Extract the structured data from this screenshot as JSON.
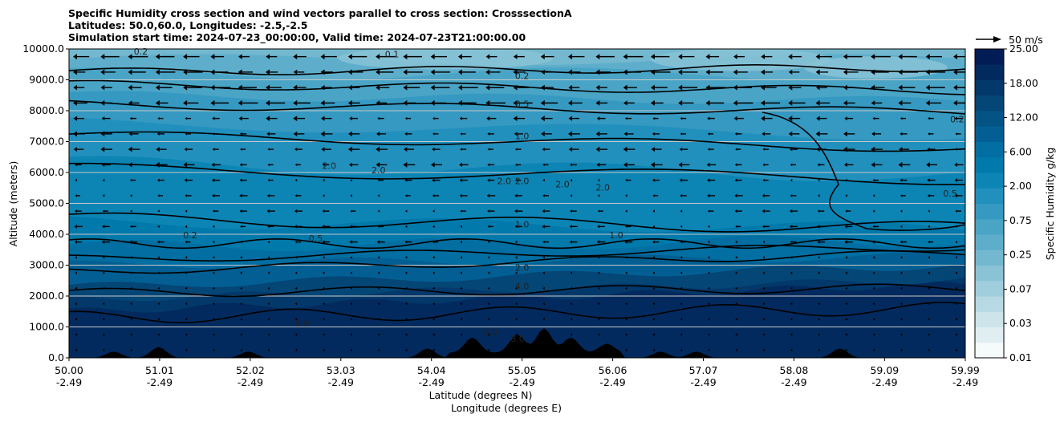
{
  "chart_data": {
    "type": "contour",
    "title_lines": [
      "Specific Humidity cross section and wind vectors parallel to cross section: CrosssectionA",
      "Latitudes: 50.0,60.0, Longitudes: -2.5,-2.5",
      "Simulation start time: 2024-07-23_00:00:00, Valid time: 2024-07-23T21:00:00.00"
    ],
    "ylabel": "Altitude (meters)",
    "xlabel_lines": [
      "Latitude (degrees N)",
      "Longitude (degrees E)"
    ],
    "ylim": [
      0,
      10000
    ],
    "xlim": [
      50.0,
      59.99
    ],
    "y_ticks": [
      "0.0",
      "1000.0",
      "2000.0",
      "3000.0",
      "4000.0",
      "5000.0",
      "6000.0",
      "7000.0",
      "8000.0",
      "9000.0",
      "10000.0"
    ],
    "x_ticks": [
      {
        "lat": "50.00",
        "lon": "-2.49"
      },
      {
        "lat": "51.01",
        "lon": "-2.49"
      },
      {
        "lat": "52.02",
        "lon": "-2.49"
      },
      {
        "lat": "53.03",
        "lon": "-2.49"
      },
      {
        "lat": "54.04",
        "lon": "-2.49"
      },
      {
        "lat": "55.05",
        "lon": "-2.49"
      },
      {
        "lat": "56.06",
        "lon": "-2.49"
      },
      {
        "lat": "57.07",
        "lon": "-2.49"
      },
      {
        "lat": "58.08",
        "lon": "-2.49"
      },
      {
        "lat": "59.09",
        "lon": "-2.49"
      },
      {
        "lat": "59.99",
        "lon": "-2.49"
      }
    ],
    "grid": "horizontal",
    "colorbar": {
      "label": "Specific Humidity g/kg",
      "tick_labels": [
        "0.01",
        "0.03",
        "0.07",
        "0.25",
        "0.75",
        "2.00",
        "6.00",
        "12.00",
        "18.00",
        "25.00"
      ],
      "colors": [
        "#f5fafb",
        "#e0eef2",
        "#cce4ea",
        "#b6d9e3",
        "#a0cedc",
        "#8ac3d6",
        "#73b8cf",
        "#5eaecb",
        "#49a4c6",
        "#3599c1",
        "#2190bd",
        "#0c85b5",
        "#0179ab",
        "#026ea1",
        "#035f93",
        "#045385",
        "#044676",
        "#03386a",
        "#022a5e",
        "#021c55"
      ]
    },
    "quiver_key": {
      "label": "50 m/s",
      "value": 50
    },
    "contour_labels": [
      {
        "text": "0.2",
        "lat": 55.05,
        "alt": 9100
      },
      {
        "text": "0.5",
        "lat": 55.05,
        "alt": 8200
      },
      {
        "text": "1.0",
        "lat": 55.05,
        "alt": 7150
      },
      {
        "text": "2.0",
        "lat": 53.45,
        "alt": 6050
      },
      {
        "text": "2.0",
        "lat": 52.9,
        "alt": 6200
      },
      {
        "text": "2.0",
        "lat": 54.85,
        "alt": 5700
      },
      {
        "text": "2.0",
        "lat": 55.05,
        "alt": 5700
      },
      {
        "text": "2.0",
        "lat": 55.5,
        "alt": 5600
      },
      {
        "text": "2.0",
        "lat": 55.95,
        "alt": 5500
      },
      {
        "text": "1.0",
        "lat": 55.05,
        "alt": 4300
      },
      {
        "text": "2.0",
        "lat": 55.05,
        "alt": 2900
      },
      {
        "text": "4.0",
        "lat": 55.05,
        "alt": 2300
      },
      {
        "text": "8.0",
        "lat": 52.6,
        "alt": 1100
      },
      {
        "text": "8.0",
        "lat": 54.7,
        "alt": 800
      },
      {
        "text": "8.0",
        "lat": 55.0,
        "alt": 600
      },
      {
        "text": "0.1",
        "lat": 53.6,
        "alt": 9800
      },
      {
        "text": "0.2",
        "lat": 50.8,
        "alt": 9900
      },
      {
        "text": "0.5",
        "lat": 52.75,
        "alt": 3850
      },
      {
        "text": "0.2",
        "lat": 51.35,
        "alt": 3950
      },
      {
        "text": "0.5",
        "lat": 59.82,
        "alt": 5300
      },
      {
        "text": "0.2",
        "lat": 59.9,
        "alt": 7700
      },
      {
        "text": "1.0",
        "lat": 56.1,
        "alt": 3950
      }
    ],
    "wind": {
      "u_direction": "toward lower latitude",
      "typical_speed_ms": 10
    }
  }
}
